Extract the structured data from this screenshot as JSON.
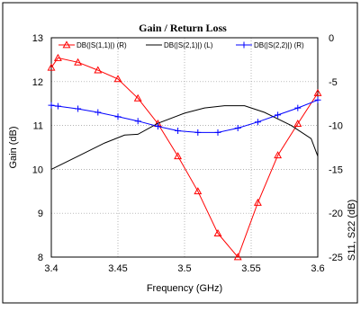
{
  "chart_data": {
    "type": "line",
    "title": "Gain / Return Loss",
    "xlabel": "Frequency (GHz)",
    "ylabel_left": "Gain (dB)",
    "ylabel_right": "S11, S22 (dB)",
    "xlim": [
      3.4,
      3.6
    ],
    "ylim_left": [
      8,
      13
    ],
    "ylim_right": [
      -25,
      0
    ],
    "x_ticks": [
      3.4,
      3.45,
      3.5,
      3.55,
      3.6
    ],
    "x_tick_labels": [
      "3.4",
      "3.45",
      "3.5",
      "3.55",
      "3.6"
    ],
    "y_left_ticks": [
      8,
      9,
      10,
      11,
      12,
      13
    ],
    "y_left_tick_labels": [
      "8",
      "9",
      "10",
      "11",
      "12",
      "13"
    ],
    "y_right_ticks": [
      -25,
      -20,
      -15,
      -10,
      -5,
      0
    ],
    "y_right_tick_labels": [
      "-25",
      "-20",
      "-15",
      "-10",
      "-5",
      "0"
    ],
    "grid": true,
    "legend_position": "top",
    "series": [
      {
        "name": "DB(|S(1,1)|) (R)",
        "axis": "right",
        "color": "#ff0000",
        "marker": "triangle",
        "x": [
          3.4,
          3.405,
          3.42,
          3.435,
          3.45,
          3.465,
          3.48,
          3.495,
          3.51,
          3.525,
          3.54,
          3.555,
          3.57,
          3.585,
          3.6
        ],
        "y": [
          -3.4,
          -2.3,
          -2.8,
          -3.7,
          -4.7,
          -6.9,
          -9.8,
          -13.5,
          -17.5,
          -22.3,
          -25.0,
          -18.8,
          -13.4,
          -9.8,
          -6.3
        ]
      },
      {
        "name": "DB(|S(2,1)|) (L)",
        "axis": "left",
        "color": "#000000",
        "marker": "none",
        "x": [
          3.4,
          3.42,
          3.44,
          3.455,
          3.465,
          3.48,
          3.5,
          3.515,
          3.53,
          3.545,
          3.56,
          3.58,
          3.595,
          3.6
        ],
        "y": [
          10.0,
          10.3,
          10.6,
          10.78,
          10.8,
          11.05,
          11.28,
          11.4,
          11.45,
          11.45,
          11.3,
          11.0,
          10.7,
          10.3
        ]
      },
      {
        "name": "DB(|S(2,2)|) (R)",
        "axis": "right",
        "color": "#0000ff",
        "marker": "plus",
        "x": [
          3.4,
          3.405,
          3.42,
          3.435,
          3.45,
          3.465,
          3.48,
          3.495,
          3.51,
          3.525,
          3.54,
          3.555,
          3.57,
          3.585,
          3.6
        ],
        "y": [
          -7.7,
          -7.8,
          -8.1,
          -8.5,
          -9.0,
          -9.5,
          -10.1,
          -10.6,
          -10.8,
          -10.8,
          -10.3,
          -9.6,
          -8.8,
          -8.0,
          -7.1
        ]
      }
    ]
  }
}
